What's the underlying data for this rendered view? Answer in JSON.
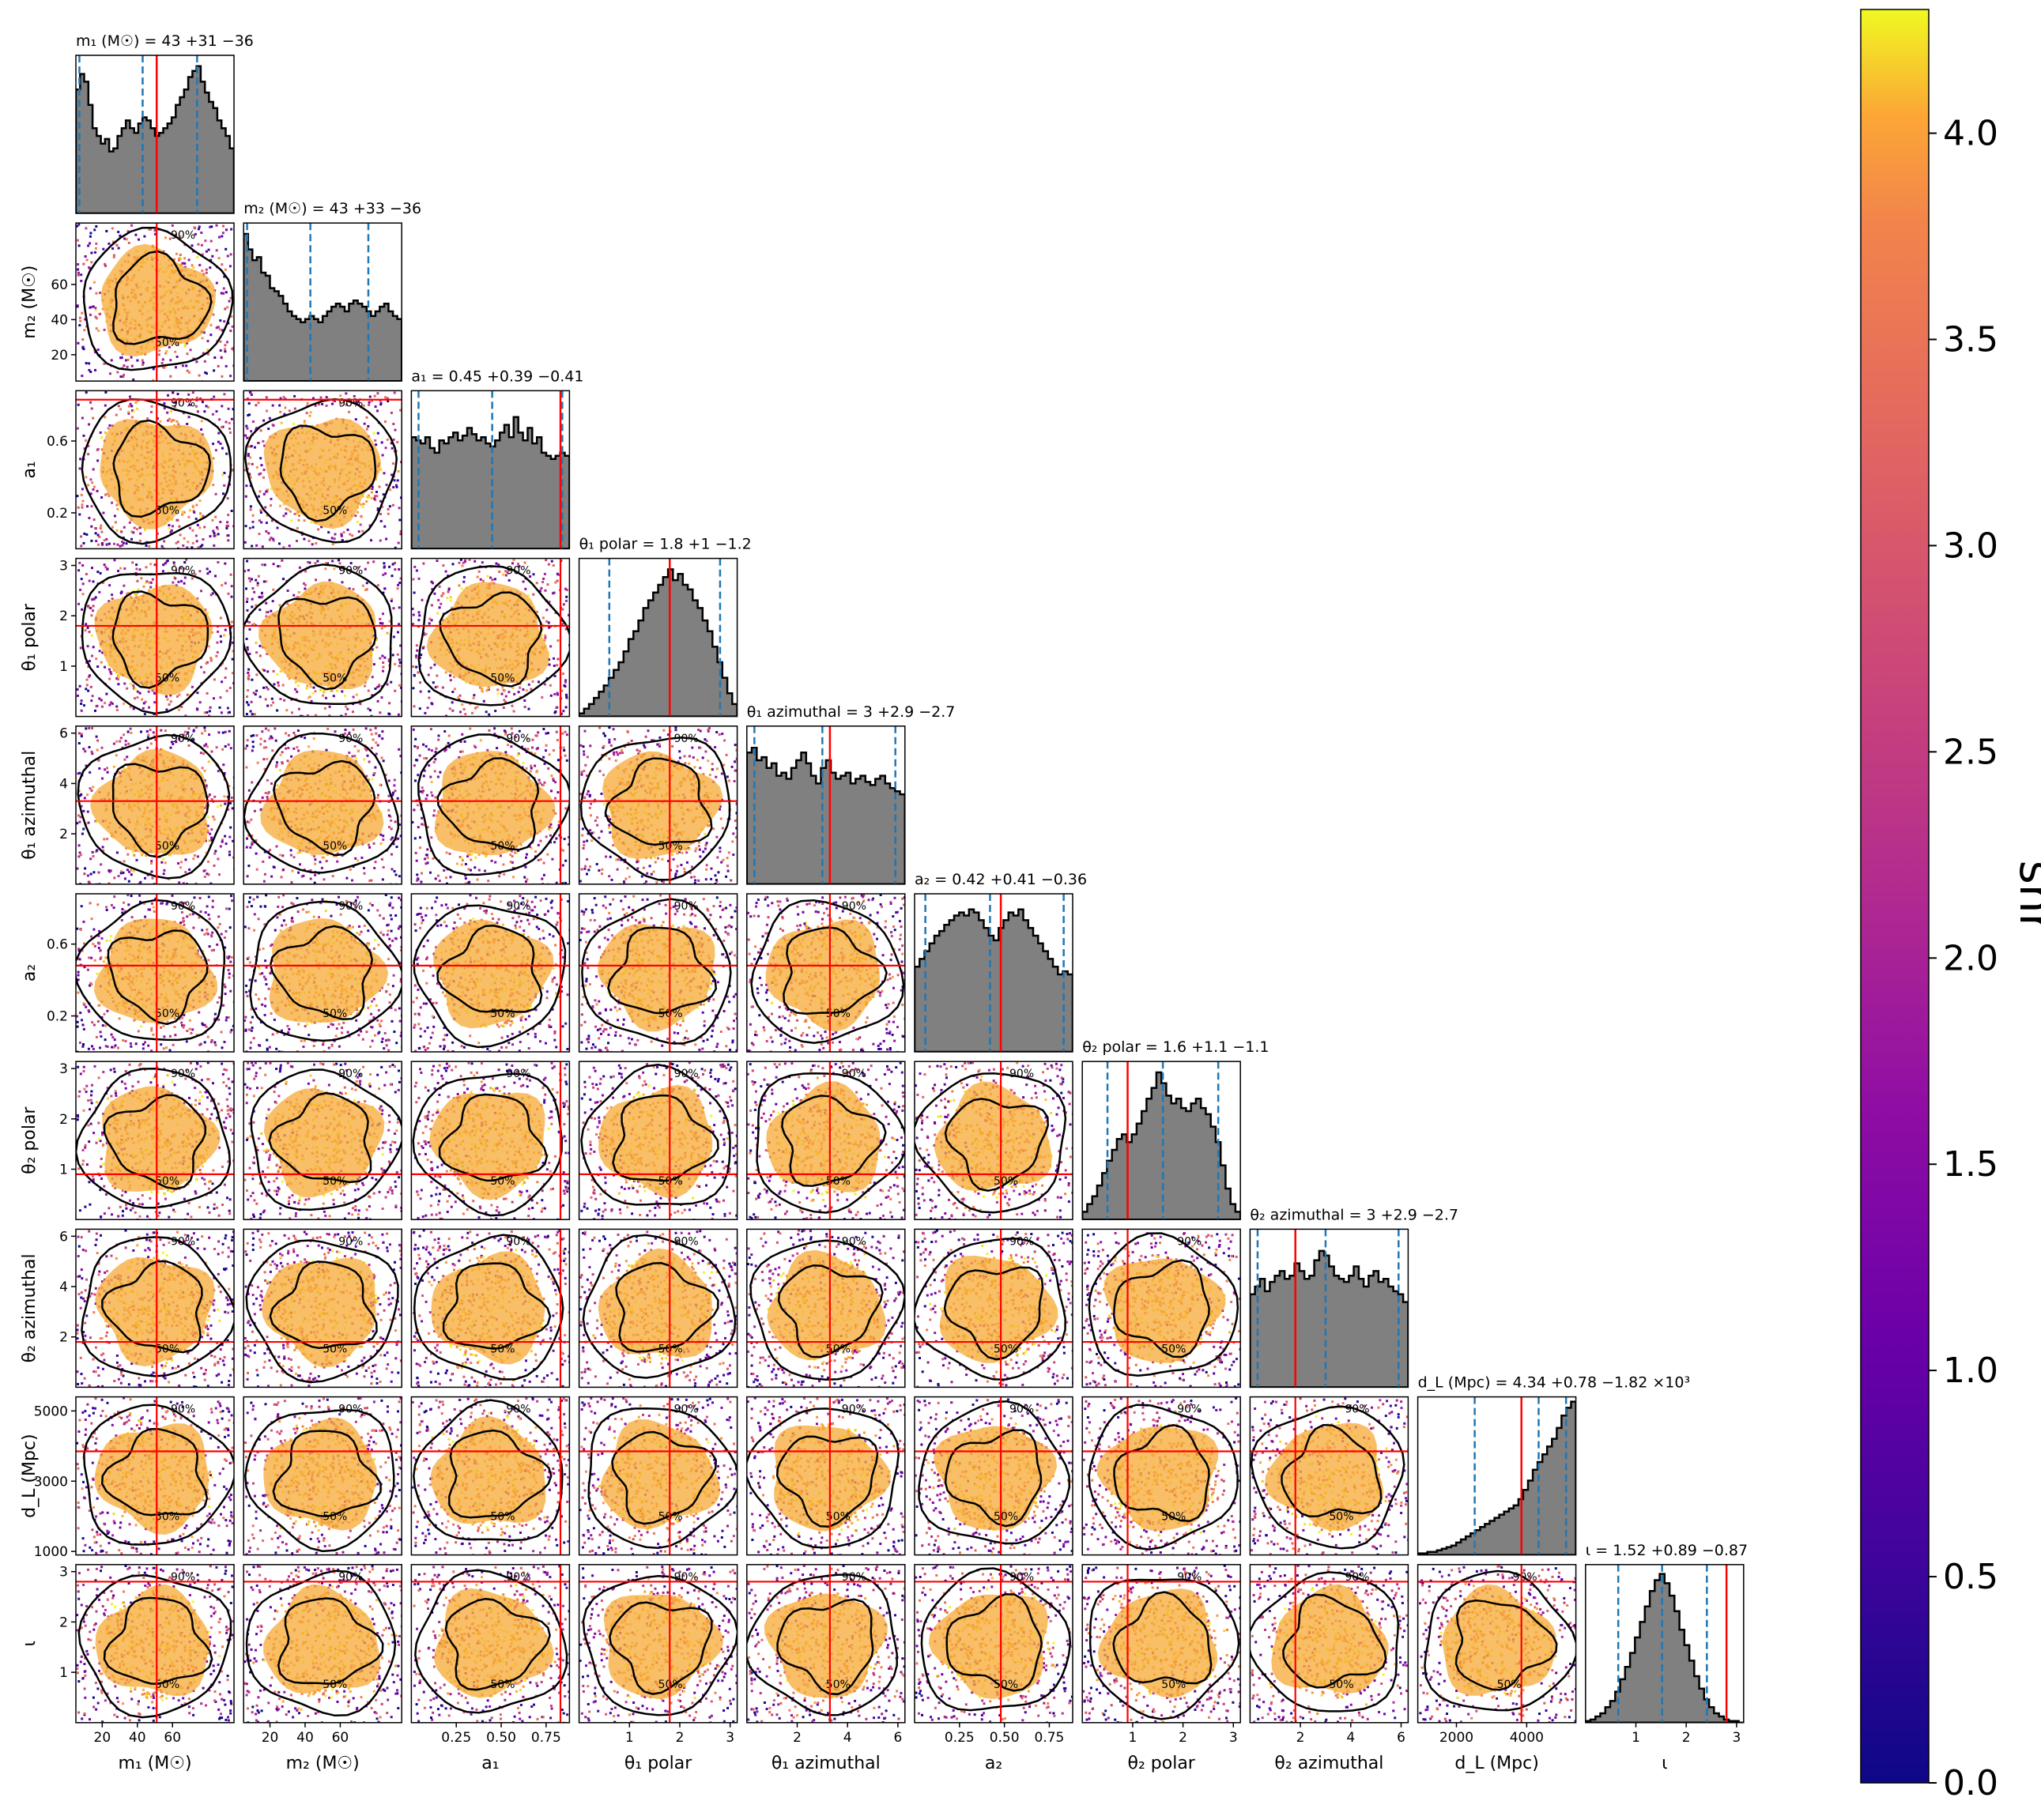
{
  "chart_data": {
    "type": "corner",
    "colorbar": {
      "label": "snr",
      "range": [
        0.0,
        4.3
      ],
      "ticks": [
        "0.0",
        "0.5",
        "1.0",
        "1.5",
        "2.0",
        "2.5",
        "3.0",
        "3.5",
        "4.0"
      ],
      "tick_values": [
        0.0,
        0.5,
        1.0,
        1.5,
        2.0,
        2.5,
        3.0,
        3.5,
        4.0
      ],
      "colormap": "plasma"
    },
    "contour_levels": [
      "50%",
      "90%"
    ],
    "colors": {
      "histogram_fill": "#808080",
      "histogram_edge": "#000000",
      "quantile_line": "#1f77b4",
      "truth_line": "#ff0000",
      "contour": "#000000"
    },
    "parameters": [
      {
        "key": "m1",
        "label": "m₁ (M☉)",
        "title": "m₁ (M☉) = 43 +31 −36",
        "range": [
          5,
          95
        ],
        "ticks": [
          20,
          40,
          60
        ],
        "tick_labels": [
          "20",
          "40",
          "60"
        ],
        "median": 43,
        "lo": 7,
        "hi": 74,
        "truth": 51,
        "hist": [
          0.8,
          0.9,
          0.85,
          0.7,
          0.55,
          0.5,
          0.45,
          0.48,
          0.4,
          0.42,
          0.5,
          0.55,
          0.6,
          0.55,
          0.52,
          0.58,
          0.62,
          0.6,
          0.55,
          0.5,
          0.52,
          0.55,
          0.58,
          0.62,
          0.7,
          0.75,
          0.8,
          0.88,
          0.92,
          0.95,
          0.85,
          0.78,
          0.72,
          0.68,
          0.6,
          0.55,
          0.5,
          0.42
        ]
      },
      {
        "key": "m2",
        "label": "m₂ (M☉)",
        "title": "m₂ (M☉) = 43 +33 −36",
        "range": [
          5,
          95
        ],
        "ticks": [
          20,
          40,
          60
        ],
        "tick_labels": [
          "20",
          "40",
          "60"
        ],
        "median": 43,
        "lo": 7,
        "hi": 76,
        "truth": null,
        "hist": [
          0.95,
          0.85,
          0.78,
          0.8,
          0.7,
          0.68,
          0.6,
          0.58,
          0.55,
          0.5,
          0.45,
          0.42,
          0.4,
          0.38,
          0.4,
          0.42,
          0.4,
          0.38,
          0.42,
          0.45,
          0.48,
          0.5,
          0.48,
          0.45,
          0.5,
          0.52,
          0.5,
          0.48,
          0.45,
          0.42,
          0.45,
          0.48,
          0.5,
          0.45,
          0.42,
          0.4
        ]
      },
      {
        "key": "a1",
        "label": "a₁",
        "title": "a₁ = 0.45 +0.39 −0.41",
        "range": [
          0.0,
          0.88
        ],
        "ticks": [
          0.2,
          0.6
        ],
        "tick_labels": [
          "0.2",
          "0.6"
        ],
        "xticks": [
          0.25,
          0.5,
          0.75
        ],
        "xtick_labels": [
          "0.25",
          "0.50",
          "0.75"
        ],
        "median": 0.45,
        "lo": 0.04,
        "hi": 0.84,
        "truth": 0.83,
        "hist": [
          0.72,
          0.7,
          0.68,
          0.72,
          0.65,
          0.62,
          0.7,
          0.68,
          0.72,
          0.75,
          0.7,
          0.73,
          0.78,
          0.74,
          0.7,
          0.72,
          0.68,
          0.66,
          0.7,
          0.75,
          0.8,
          0.72,
          0.85,
          0.75,
          0.7,
          0.78,
          0.68,
          0.72,
          0.62,
          0.6,
          0.58,
          0.6,
          0.62,
          0.6
        ]
      },
      {
        "key": "th1p",
        "label": "θ₁ polar",
        "title": "θ₁ polar = 1.8 +1 −1.2",
        "range": [
          0,
          3.14
        ],
        "ticks": [
          1,
          2,
          3
        ],
        "tick_labels": [
          "1",
          "2",
          "3"
        ],
        "median": 1.8,
        "lo": 0.6,
        "hi": 2.8,
        "truth": 1.8,
        "hist": [
          0.02,
          0.05,
          0.08,
          0.12,
          0.16,
          0.2,
          0.25,
          0.3,
          0.35,
          0.42,
          0.5,
          0.55,
          0.62,
          0.7,
          0.75,
          0.8,
          0.85,
          0.9,
          0.95,
          0.88,
          0.92,
          0.85,
          0.82,
          0.75,
          0.7,
          0.62,
          0.55,
          0.45,
          0.35,
          0.25,
          0.15,
          0.08
        ]
      },
      {
        "key": "th1a",
        "label": "θ₁ azimuthal",
        "title": "θ₁ azimuthal = 3 +2.9 −2.7",
        "range": [
          0,
          6.28
        ],
        "ticks": [
          2,
          4,
          6
        ],
        "tick_labels": [
          "2",
          "4",
          "6"
        ],
        "median": 3.0,
        "lo": 0.3,
        "hi": 5.9,
        "truth": 3.3,
        "hist": [
          0.85,
          0.88,
          0.8,
          0.82,
          0.75,
          0.78,
          0.7,
          0.72,
          0.68,
          0.75,
          0.8,
          0.85,
          0.78,
          0.7,
          0.65,
          0.75,
          0.8,
          0.72,
          0.68,
          0.7,
          0.72,
          0.65,
          0.68,
          0.7,
          0.66,
          0.64,
          0.68,
          0.7,
          0.65,
          0.62,
          0.6,
          0.58
        ]
      },
      {
        "key": "a2",
        "label": "a₂",
        "title": "a₂ = 0.42 +0.41 −0.36",
        "range": [
          0.0,
          0.88
        ],
        "ticks": [
          0.2,
          0.6
        ],
        "tick_labels": [
          "0.2",
          "0.6"
        ],
        "xticks": [
          0.25,
          0.5,
          0.75
        ],
        "xtick_labels": [
          "0.25",
          "0.50",
          "0.75"
        ],
        "median": 0.42,
        "lo": 0.06,
        "hi": 0.83,
        "truth": 0.48,
        "hist": [
          0.55,
          0.6,
          0.65,
          0.7,
          0.75,
          0.78,
          0.82,
          0.85,
          0.88,
          0.9,
          0.88,
          0.92,
          0.9,
          0.85,
          0.8,
          0.75,
          0.72,
          0.8,
          0.85,
          0.9,
          0.88,
          0.92,
          0.85,
          0.8,
          0.75,
          0.7,
          0.65,
          0.6,
          0.55,
          0.5,
          0.52,
          0.5
        ]
      },
      {
        "key": "th2p",
        "label": "θ₂ polar",
        "title": "θ₂ polar = 1.6 +1.1 −1.1",
        "range": [
          0,
          3.14
        ],
        "ticks": [
          1,
          2,
          3
        ],
        "tick_labels": [
          "1",
          "2",
          "3"
        ],
        "median": 1.6,
        "lo": 0.5,
        "hi": 2.7,
        "truth": 0.9,
        "hist": [
          0.05,
          0.1,
          0.15,
          0.22,
          0.3,
          0.38,
          0.45,
          0.52,
          0.55,
          0.5,
          0.55,
          0.62,
          0.7,
          0.78,
          0.85,
          0.95,
          0.88,
          0.8,
          0.75,
          0.78,
          0.72,
          0.7,
          0.75,
          0.78,
          0.72,
          0.68,
          0.6,
          0.5,
          0.35,
          0.2,
          0.1,
          0.05
        ]
      },
      {
        "key": "th2a",
        "label": "θ₂ azimuthal",
        "title": "θ₂ azimuthal = 3 +2.9 −2.7",
        "range": [
          0,
          6.28
        ],
        "ticks": [
          2,
          4,
          6
        ],
        "tick_labels": [
          "2",
          "4",
          "6"
        ],
        "median": 3.0,
        "lo": 0.3,
        "hi": 5.9,
        "truth": 1.8,
        "hist": [
          0.6,
          0.65,
          0.7,
          0.62,
          0.68,
          0.72,
          0.75,
          0.7,
          0.72,
          0.8,
          0.75,
          0.7,
          0.72,
          0.82,
          0.88,
          0.85,
          0.78,
          0.72,
          0.7,
          0.68,
          0.72,
          0.78,
          0.7,
          0.65,
          0.72,
          0.75,
          0.68,
          0.7,
          0.65,
          0.62,
          0.6,
          0.55
        ]
      },
      {
        "key": "dL",
        "label": "d_L (Mpc)",
        "title": "d_L (Mpc) = 4.34 +0.78 −1.82 ×10³",
        "range": [
          900,
          5400
        ],
        "ticks": [
          1000,
          3000,
          5000
        ],
        "tick_labels": [
          "1000",
          "3000",
          "5000"
        ],
        "xticks": [
          2000,
          4000
        ],
        "xtick_labels": [
          "2000",
          "4000"
        ],
        "median": 4340,
        "lo": 2520,
        "hi": 5120,
        "truth": 3850,
        "hist": [
          0.01,
          0.01,
          0.02,
          0.02,
          0.03,
          0.04,
          0.05,
          0.06,
          0.08,
          0.1,
          0.12,
          0.14,
          0.16,
          0.18,
          0.2,
          0.22,
          0.24,
          0.26,
          0.28,
          0.3,
          0.32,
          0.36,
          0.42,
          0.48,
          0.55,
          0.6,
          0.65,
          0.7,
          0.75,
          0.82,
          0.9,
          0.95,
          0.99
        ]
      },
      {
        "key": "iota",
        "label": "ι",
        "title": "ι = 1.52 +0.89 −0.87",
        "range": [
          0,
          3.14
        ],
        "ticks": [
          1,
          2,
          3
        ],
        "tick_labels": [
          "1",
          "2",
          "3"
        ],
        "median": 1.52,
        "lo": 0.65,
        "hi": 2.41,
        "truth": 2.8,
        "hist": [
          0.01,
          0.02,
          0.04,
          0.06,
          0.1,
          0.14,
          0.2,
          0.28,
          0.36,
          0.45,
          0.55,
          0.65,
          0.75,
          0.85,
          0.92,
          0.96,
          0.9,
          0.82,
          0.72,
          0.6,
          0.5,
          0.4,
          0.3,
          0.22,
          0.15,
          0.1,
          0.06,
          0.04,
          0.02,
          0.01,
          0.01,
          0.0
        ]
      }
    ]
  }
}
